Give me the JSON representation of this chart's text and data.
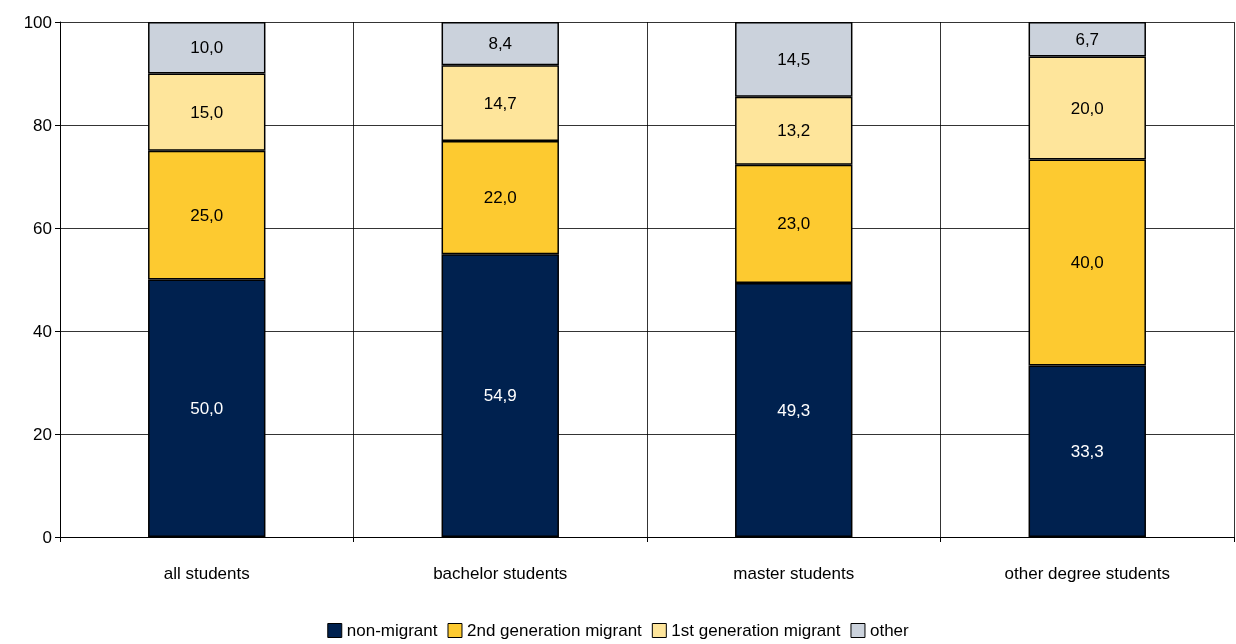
{
  "chart_data": {
    "type": "bar",
    "stacked": true,
    "categories": [
      "all students",
      "bachelor students",
      "master students",
      "other degree students"
    ],
    "series": [
      {
        "name": "non-migrant",
        "color": "#00214f",
        "values": [
          50.0,
          54.9,
          49.3,
          33.3
        ],
        "value_labels": [
          "50,0",
          "54,9",
          "49,3",
          "33,3"
        ]
      },
      {
        "name": "2nd generation migrant",
        "color": "#fdca30",
        "values": [
          25.0,
          22.0,
          23.0,
          40.0
        ],
        "value_labels": [
          "25,0",
          "22,0",
          "23,0",
          "40,0"
        ]
      },
      {
        "name": "1st generation migrant",
        "color": "#fee59b",
        "values": [
          15.0,
          14.7,
          13.2,
          20.0
        ],
        "value_labels": [
          "15,0",
          "14,7",
          "13,2",
          "20,0"
        ]
      },
      {
        "name": "other",
        "color": "#cbd2dc",
        "values": [
          10.0,
          8.4,
          14.5,
          6.7
        ],
        "value_labels": [
          "10,0",
          "8,4",
          "14,5",
          "6,7"
        ]
      }
    ],
    "ylim": [
      0,
      100
    ],
    "yticks": [
      0,
      20,
      40,
      60,
      80,
      100
    ],
    "grid": true,
    "legend": "bottom"
  }
}
